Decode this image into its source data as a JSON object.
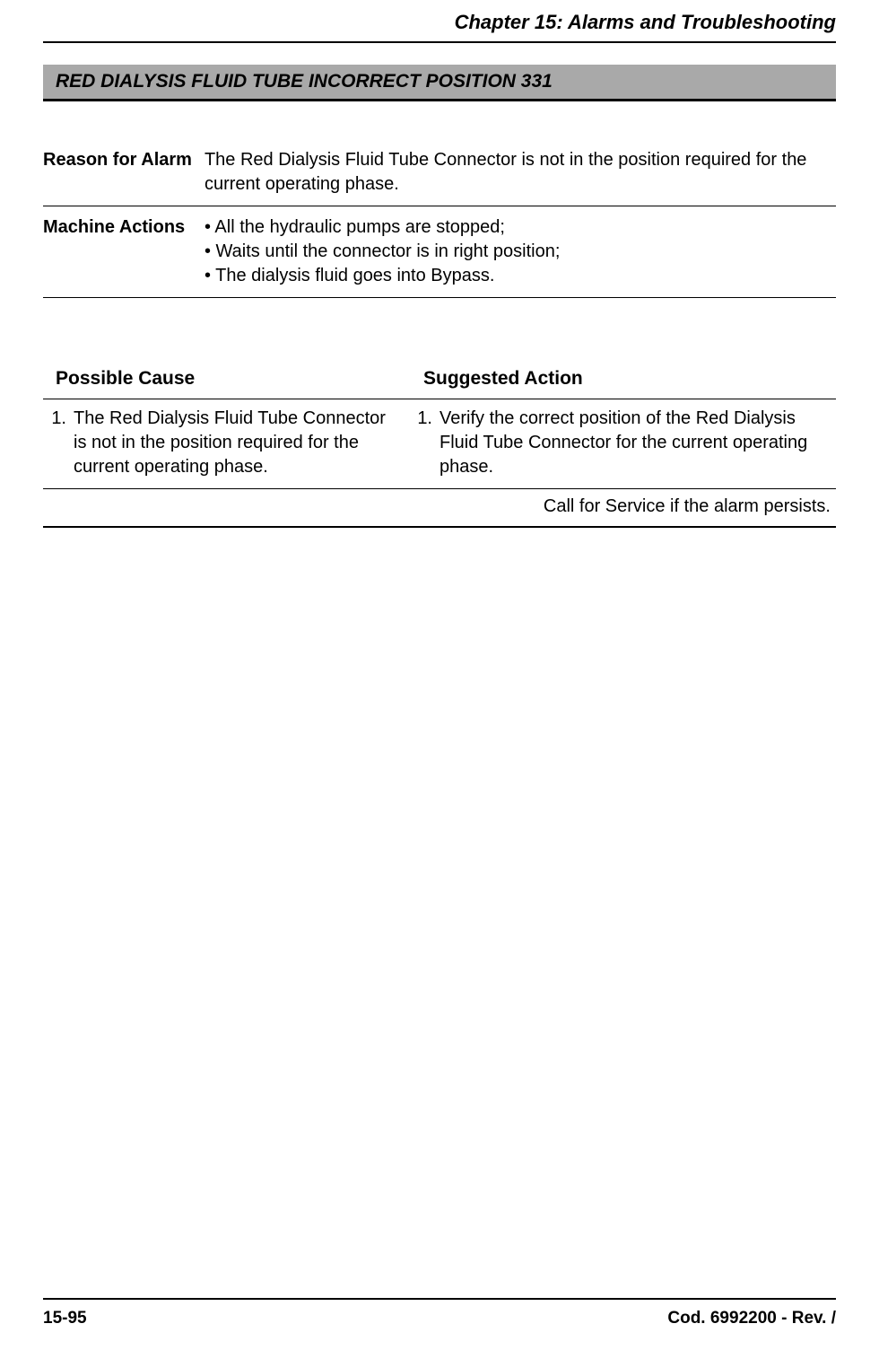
{
  "chapter_title": "Chapter 15: Alarms and Troubleshooting",
  "alarm_title": "RED DIALYSIS FLUID TUBE INCORRECT POSITION 331",
  "info": {
    "reason_label": "Reason for Alarm",
    "reason_text": "The Red Dialysis Fluid Tube Connector is not in the position required for the current operating phase.",
    "actions_label": "Machine Actions",
    "action_1": "• All the hydraulic pumps are stopped;",
    "action_2": "• Waits until the connector is in right position;",
    "action_3": "• The dialysis fluid goes into Bypass."
  },
  "cause_action": {
    "cause_header": "Possible Cause",
    "action_header": "Suggested Action",
    "row1": {
      "num": "1.",
      "cause": "The Red Dialysis Fluid Tube Connector is not in the position required for the current operating phase.",
      "action_num": "1.",
      "action": "Verify the correct position of the Red Dialysis Fluid Tube Connector for the current operating phase."
    },
    "persist": "Call for Service if the alarm persists."
  },
  "footer": {
    "page": "15-95",
    "doc_code": "Cod. 6992200 - Rev. /"
  },
  "colors": {
    "title_bar_bg": "#a9a9a9",
    "text": "#000000",
    "border": "#000000",
    "background": "#ffffff"
  },
  "typography": {
    "font_family": "Arial, Helvetica, sans-serif",
    "chapter_title_size": 22,
    "alarm_title_size": 21,
    "body_size": 20,
    "footer_size": 19
  }
}
